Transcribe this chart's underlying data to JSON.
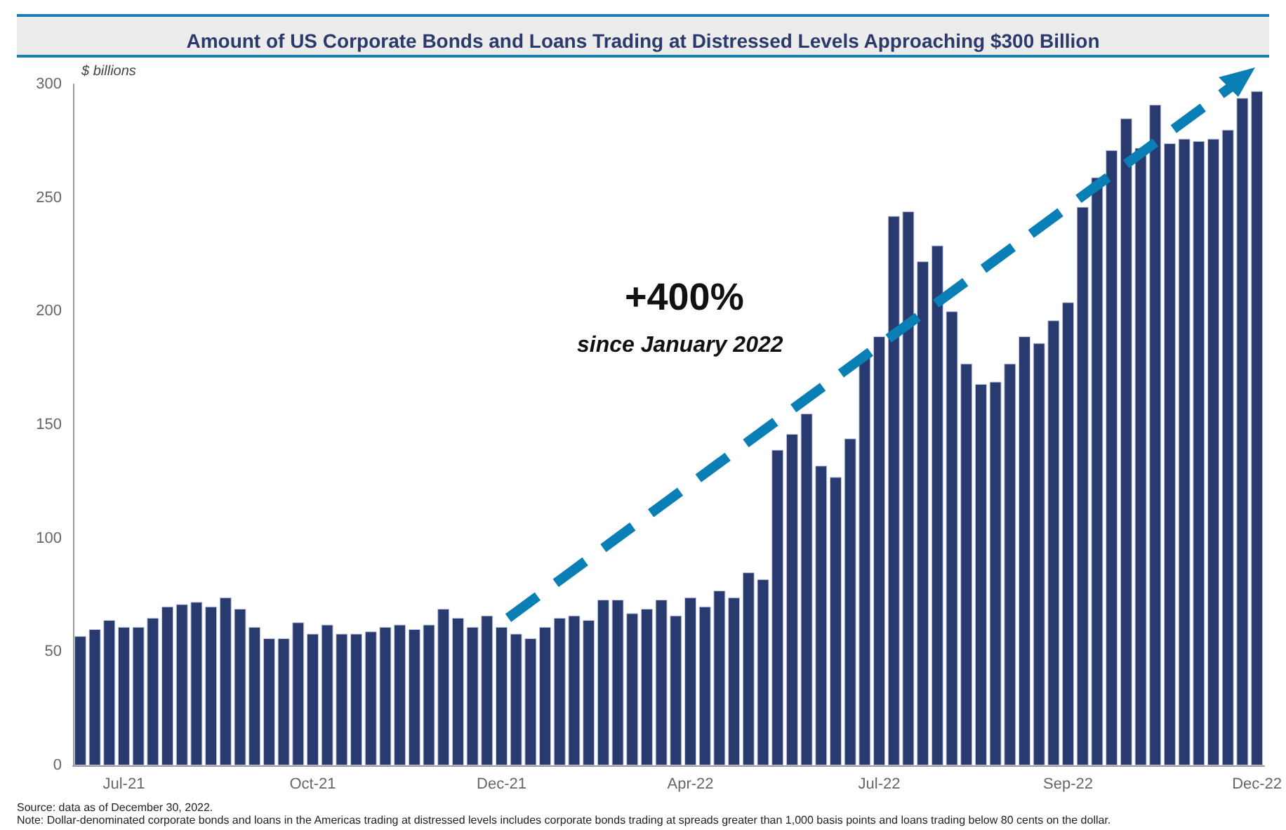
{
  "chart_data": {
    "type": "bar",
    "title": "Amount of US Corporate Bonds and Loans Trading at Distressed Levels Approaching $300 Billion",
    "ylabel": "$ billions",
    "categories": [
      null,
      null,
      null,
      "Jul-21",
      null,
      null,
      null,
      null,
      null,
      null,
      null,
      null,
      null,
      null,
      null,
      null,
      "Oct-21",
      null,
      null,
      null,
      null,
      null,
      null,
      null,
      null,
      null,
      null,
      null,
      null,
      "Dec-21",
      null,
      null,
      null,
      null,
      null,
      null,
      null,
      null,
      null,
      null,
      null,
      null,
      "Apr-22",
      null,
      null,
      null,
      null,
      null,
      null,
      null,
      null,
      null,
      null,
      null,
      null,
      "Jul-22",
      null,
      null,
      null,
      null,
      null,
      null,
      null,
      null,
      null,
      null,
      null,
      null,
      "Sep-22",
      null,
      null,
      null,
      null,
      null,
      null,
      null,
      null,
      null,
      null,
      null,
      null,
      "Dec-22"
    ],
    "values": [
      57,
      60,
      64,
      61,
      61,
      65,
      70,
      71,
      72,
      70,
      74,
      69,
      61,
      56,
      56,
      63,
      58,
      62,
      58,
      58,
      59,
      61,
      62,
      60,
      62,
      69,
      65,
      61,
      66,
      61,
      58,
      56,
      61,
      65,
      66,
      64,
      73,
      73,
      67,
      69,
      73,
      66,
      74,
      70,
      77,
      74,
      85,
      82,
      139,
      146,
      155,
      132,
      127,
      144,
      180,
      189,
      242,
      244,
      222,
      229,
      200,
      177,
      168,
      169,
      177,
      189,
      186,
      196,
      204,
      246,
      259,
      271,
      285,
      272,
      291,
      274,
      276,
      275,
      276,
      280,
      294,
      297
    ],
    "color": "#283a6e",
    "ylim": [
      0,
      300
    ],
    "yticks": [
      0,
      50,
      100,
      150,
      200,
      250,
      300
    ],
    "grid": false,
    "annotations": [
      "+400%",
      "since January 2022",
      "Source: data as of December 30, 2022.",
      "Note: Dollar-denominated corporate bonds and loans in the Americas trading at distressed levels includes corporate bonds trading at spreads greater than 1,000 basis points and loans trading below 80 cents on the dollar."
    ]
  }
}
